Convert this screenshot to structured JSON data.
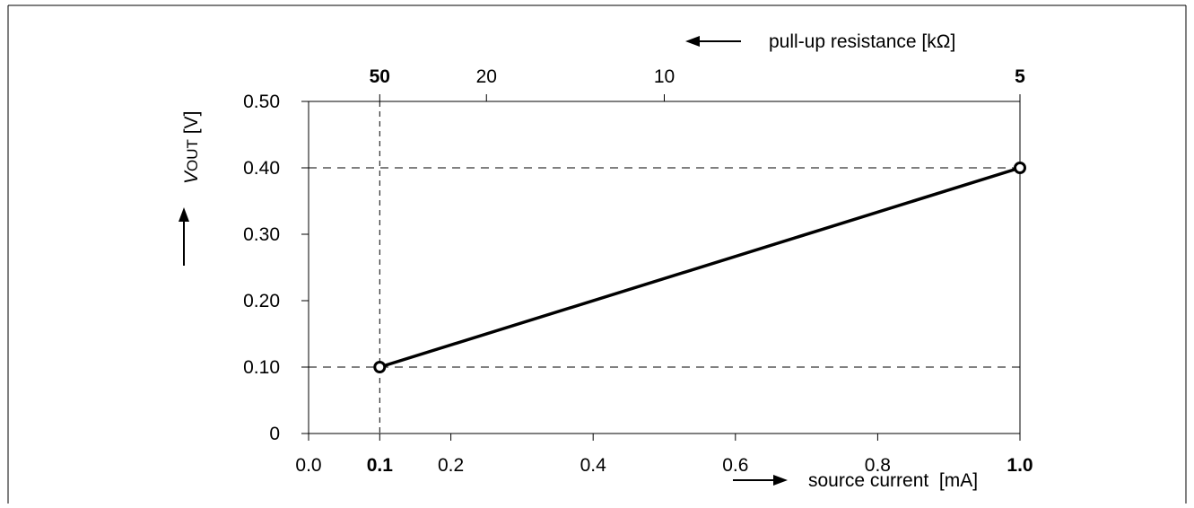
{
  "chart_data": {
    "type": "line",
    "title": "",
    "xlabel": "source current  [mA]",
    "x2label": "pull-up resistance [kΩ]",
    "ylabel": {
      "prefix": "V",
      "subscript": "OUT",
      "suffix": " [V]"
    },
    "xlim": [
      0.0,
      1.0
    ],
    "ylim": [
      0,
      0.5
    ],
    "x_ticks": [
      {
        "value": 0.0,
        "label": "0.0",
        "bold": false
      },
      {
        "value": 0.1,
        "label": "0.1",
        "bold": true
      },
      {
        "value": 0.2,
        "label": "0.2",
        "bold": false
      },
      {
        "value": 0.4,
        "label": "0.4",
        "bold": false
      },
      {
        "value": 0.6,
        "label": "0.6",
        "bold": false
      },
      {
        "value": 0.8,
        "label": "0.8",
        "bold": false
      },
      {
        "value": 1.0,
        "label": "1.0",
        "bold": true
      }
    ],
    "y_ticks": [
      {
        "value": 0,
        "label": "0"
      },
      {
        "value": 0.1,
        "label": "0.10"
      },
      {
        "value": 0.2,
        "label": "0.20"
      },
      {
        "value": 0.3,
        "label": "0.30"
      },
      {
        "value": 0.4,
        "label": "0.40"
      },
      {
        "value": 0.5,
        "label": "0.50"
      }
    ],
    "x2_ticks": [
      {
        "kohm": 50,
        "x": 0.1,
        "label": "50",
        "bold": true
      },
      {
        "kohm": 20,
        "x": 0.25,
        "label": "20",
        "bold": false
      },
      {
        "kohm": 10,
        "x": 0.5,
        "label": "10",
        "bold": false
      },
      {
        "kohm": 5,
        "x": 1.0,
        "label": "5",
        "bold": true
      }
    ],
    "series": [
      {
        "x": [
          0.1,
          1.0
        ],
        "y": [
          0.1,
          0.4
        ],
        "markers": "open-circle"
      }
    ],
    "reference_lines": {
      "horizontal": [
        0.1,
        0.4
      ],
      "vertical": [
        0.1
      ]
    },
    "grid": false,
    "legend": "none"
  }
}
